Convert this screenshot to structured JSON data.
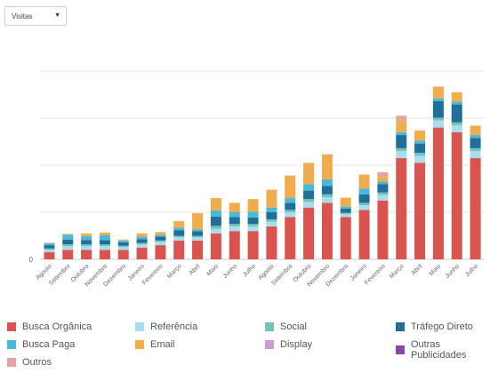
{
  "selector": {
    "value": "Visitas"
  },
  "chart_data": {
    "type": "bar",
    "stacked": true,
    "categories": [
      "Agosto",
      "Setembro",
      "Outubro",
      "Novembro",
      "Dezembro",
      "Janeiro",
      "Fevereiro",
      "Março",
      "Abril",
      "Maio",
      "Junho",
      "Julho",
      "Agosto",
      "Setembro",
      "Outubro",
      "Novembro",
      "Dezembro",
      "Janeiro",
      "Fevereiro",
      "Março",
      "Abril",
      "Maio",
      "Junho",
      "Julho"
    ],
    "ylim": [
      0,
      40
    ],
    "yticks": [
      {
        "value": 0,
        "label": "0"
      },
      {
        "value": 10,
        "label": ""
      },
      {
        "value": 20,
        "label": ""
      },
      {
        "value": 30,
        "label": ""
      },
      {
        "value": 40,
        "label": ""
      }
    ],
    "grid": true,
    "legend_position": "bottom",
    "series": [
      {
        "name": "Busca Orgânica",
        "color": "#d9534f",
        "values": [
          1.5,
          2.0,
          2.0,
          2.0,
          2.0,
          2.5,
          3.0,
          4.0,
          4.0,
          5.5,
          6.0,
          6.0,
          7.0,
          9.0,
          11.0,
          12.0,
          9.0,
          10.5,
          12.5,
          21.5,
          20.5,
          28.0,
          27.0,
          21.5
        ]
      },
      {
        "name": "Referência",
        "color": "#a8dcef",
        "values": [
          0.5,
          0.8,
          0.8,
          0.8,
          0.6,
          0.7,
          0.7,
          0.7,
          0.7,
          1.0,
          1.0,
          1.0,
          1.0,
          1.0,
          1.2,
          1.2,
          0.6,
          1.0,
          1.2,
          1.5,
          1.5,
          1.5,
          1.5,
          1.5
        ]
      },
      {
        "name": "Social",
        "color": "#72c3b2",
        "values": [
          0.3,
          0.4,
          0.4,
          0.4,
          0.3,
          0.3,
          0.3,
          0.3,
          0.3,
          0.6,
          0.5,
          0.5,
          0.5,
          0.5,
          0.6,
          0.6,
          0.3,
          0.5,
          0.5,
          0.6,
          0.6,
          0.6,
          0.6,
          0.6
        ]
      },
      {
        "name": "Tráfego Direto",
        "color": "#1f6f9a",
        "values": [
          0.7,
          1.0,
          0.9,
          0.9,
          0.7,
          0.8,
          0.8,
          1.2,
          1.0,
          2.0,
          1.5,
          1.4,
          1.5,
          1.5,
          1.8,
          1.8,
          0.9,
          1.8,
          1.8,
          2.8,
          2.0,
          3.5,
          3.8,
          2.2
        ]
      },
      {
        "name": "Busca Paga",
        "color": "#4ab8d8",
        "values": [
          0.4,
          1.0,
          0.8,
          1.0,
          0.4,
          0.5,
          0.4,
          0.5,
          0.4,
          1.3,
          1.0,
          1.2,
          1.0,
          1.0,
          1.4,
          1.4,
          0.4,
          1.2,
          0.5,
          0.6,
          0.6,
          0.6,
          0.6,
          0.6
        ]
      },
      {
        "name": "Email",
        "color": "#f0ad4e",
        "values": [
          0.1,
          0.2,
          0.6,
          0.6,
          0.2,
          0.7,
          0.6,
          1.4,
          3.4,
          2.6,
          2.0,
          2.7,
          3.8,
          4.8,
          4.5,
          5.3,
          1.9,
          3.0,
          1.0,
          2.5,
          2.2,
          2.5,
          2.0,
          2.0
        ]
      },
      {
        "name": "Display",
        "color": "#cf9bd6",
        "values": [
          0,
          0,
          0,
          0,
          0,
          0,
          0,
          0,
          0,
          0,
          0,
          0,
          0,
          0,
          0,
          0,
          0,
          0,
          0,
          0,
          0,
          0,
          0,
          0
        ]
      },
      {
        "name": "Outras Publicidades",
        "color": "#8e44ad",
        "values": [
          0,
          0,
          0,
          0,
          0,
          0,
          0,
          0,
          0,
          0,
          0,
          0,
          0,
          0,
          0,
          0,
          0,
          0,
          0,
          0,
          0,
          0,
          0,
          0
        ]
      },
      {
        "name": "Outros",
        "color": "#e6a3a3",
        "values": [
          0,
          0,
          0,
          0,
          0,
          0,
          0,
          0,
          0,
          0,
          0,
          0,
          0,
          0,
          0,
          0,
          0,
          0,
          1.0,
          1.0,
          0,
          0,
          0,
          0
        ]
      }
    ]
  }
}
